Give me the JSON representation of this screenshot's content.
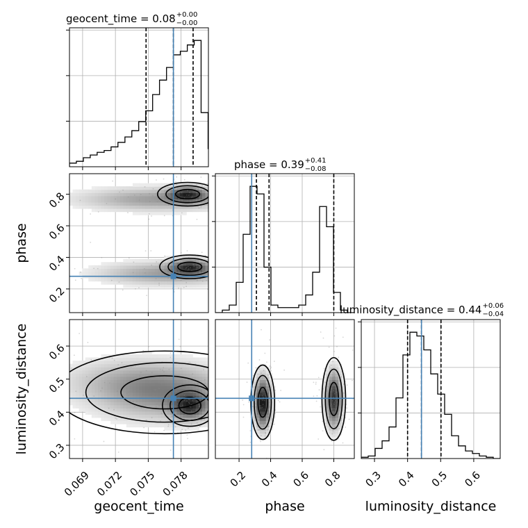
{
  "chart_data": {
    "type": "corner",
    "colors": {
      "truth": "#4682b4",
      "hist": "#000000",
      "density": "#000000",
      "grid": "#b0b0b0"
    },
    "parameters": [
      {
        "name": "geocent_time",
        "title_label": "geocent_time = 0.08",
        "title_plus": "+0.00",
        "title_minus": "−0.00",
        "ticks": [
          0.069,
          0.072,
          0.075,
          0.078
        ],
        "tick_labels": [
          "0.069",
          "0.072",
          "0.075",
          "0.078"
        ],
        "range": [
          0.0678,
          0.0805
        ],
        "truth": 0.0773,
        "quantiles": [
          0.0748,
          0.0773,
          0.0791
        ],
        "hist": {
          "edges": [
            0.0678,
            0.06843,
            0.06907,
            0.0697,
            0.07033,
            0.07097,
            0.0716,
            0.07223,
            0.07287,
            0.0735,
            0.07413,
            0.07477,
            0.0754,
            0.07603,
            0.07667,
            0.0773,
            0.07793,
            0.07857,
            0.0792,
            0.07983,
            0.08047,
            0.0811
          ],
          "counts": [
            4,
            6,
            10,
            13,
            16,
            18,
            22,
            27,
            33,
            40,
            50,
            62,
            80,
            96,
            110,
            124,
            128,
            135,
            140,
            60,
            20
          ]
        }
      },
      {
        "name": "phase",
        "title_label": "phase = 0.39",
        "title_plus": "+0.41",
        "title_minus": "−0.08",
        "ticks": [
          0.2,
          0.4,
          0.6,
          0.8
        ],
        "tick_labels": [
          "0.2",
          "0.4",
          "0.6",
          "0.8"
        ],
        "range": [
          0.05,
          0.93
        ],
        "truth": 0.28,
        "quantiles": [
          0.31,
          0.39,
          0.8
        ],
        "hist": {
          "edges": [
            0.05,
            0.094,
            0.138,
            0.182,
            0.226,
            0.27,
            0.314,
            0.358,
            0.402,
            0.446,
            0.49,
            0.534,
            0.578,
            0.622,
            0.666,
            0.71,
            0.754,
            0.798,
            0.842,
            0.886,
            0.93
          ],
          "counts": [
            0,
            1,
            3,
            12,
            31,
            50,
            47,
            18,
            3,
            2,
            2,
            2,
            3,
            7,
            16,
            42,
            34,
            8,
            1,
            0
          ]
        }
      },
      {
        "name": "luminosity_distance",
        "title_label": "luminosity_distance = 0.44",
        "title_plus": "+0.06",
        "title_minus": "−0.04",
        "ticks": [
          0.3,
          0.4,
          0.5,
          0.6
        ],
        "tick_labels": [
          "0.3",
          "0.4",
          "0.5",
          "0.6"
        ],
        "range": [
          0.26,
          0.68
        ],
        "truth": 0.442,
        "quantiles": [
          0.4,
          0.442,
          0.501
        ],
        "hist": {
          "edges": [
            0.26,
            0.281,
            0.302,
            0.323,
            0.344,
            0.365,
            0.386,
            0.407,
            0.428,
            0.449,
            0.47,
            0.491,
            0.512,
            0.533,
            0.554,
            0.575,
            0.596,
            0.617,
            0.638,
            0.659,
            0.68
          ],
          "counts": [
            1,
            2,
            8,
            14,
            25,
            48,
            82,
            100,
            97,
            86,
            67,
            51,
            35,
            18,
            10,
            6,
            4,
            2,
            1,
            0
          ]
        }
      }
    ],
    "pairs": [
      {
        "x": "geocent_time",
        "y": "phase",
        "modes": [
          {
            "cx": 0.0786,
            "cy": 0.8,
            "sx": 0.0011,
            "sy": 0.03,
            "w": 0.55
          },
          {
            "cx": 0.0788,
            "cy": 0.34,
            "sx": 0.0011,
            "sy": 0.03,
            "w": 0.55
          },
          {
            "cx": 0.077,
            "cy": 0.3,
            "sx": 0.004,
            "sy": 0.045,
            "w": 0.25
          },
          {
            "cx": 0.076,
            "cy": 0.77,
            "sx": 0.0045,
            "sy": 0.045,
            "w": 0.25
          }
        ]
      },
      {
        "x": "geocent_time",
        "y": "luminosity_distance",
        "modes": [
          {
            "cx": 0.0788,
            "cy": 0.42,
            "sx": 0.001,
            "sy": 0.025,
            "w": 0.6
          },
          {
            "cx": 0.0765,
            "cy": 0.46,
            "sx": 0.004,
            "sy": 0.05,
            "w": 0.35
          },
          {
            "cx": 0.073,
            "cy": 0.5,
            "sx": 0.004,
            "sy": 0.04,
            "w": 0.12
          }
        ]
      },
      {
        "x": "phase",
        "y": "luminosity_distance",
        "modes": [
          {
            "cx": 0.35,
            "cy": 0.43,
            "sx": 0.03,
            "sy": 0.045,
            "w": 0.6
          },
          {
            "cx": 0.8,
            "cy": 0.44,
            "sx": 0.03,
            "sy": 0.05,
            "w": 0.5
          }
        ]
      }
    ]
  }
}
